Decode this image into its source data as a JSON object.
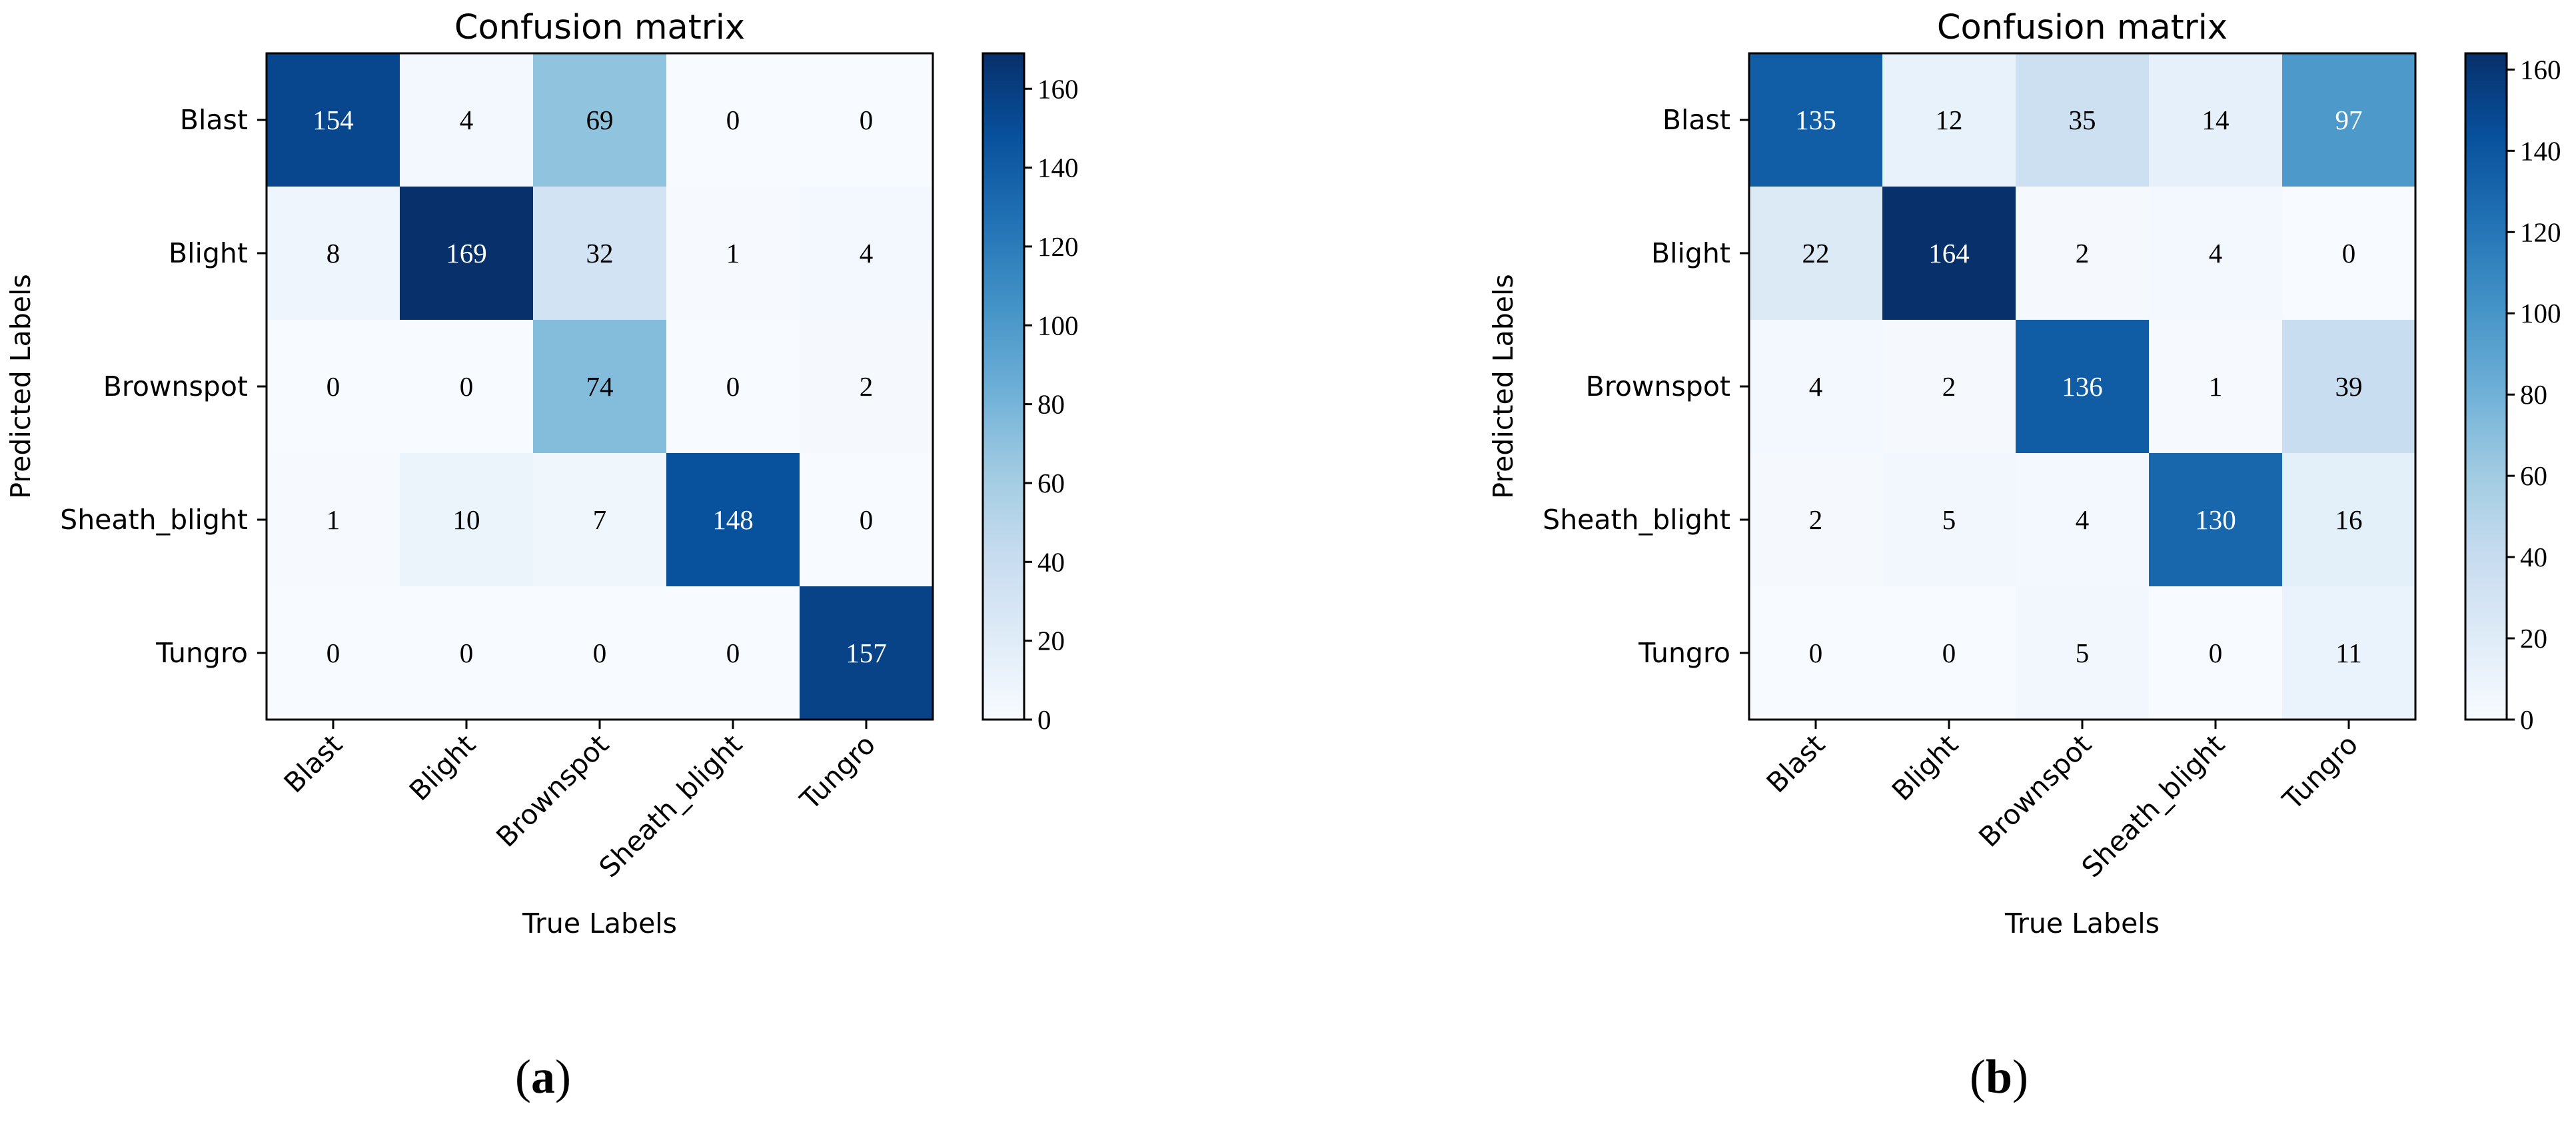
{
  "chart_data": [
    {
      "type": "heatmap",
      "title": "Confusion matrix",
      "xlabel": "True Labels",
      "ylabel": "Predicted Labels",
      "x_categories": [
        "Blast",
        "Blight",
        "Brownspot",
        "Sheath_blight",
        "Tungro"
      ],
      "y_categories": [
        "Blast",
        "Blight",
        "Brownspot",
        "Sheath_blight",
        "Tungro"
      ],
      "matrix": [
        [
          154,
          4,
          69,
          0,
          0
        ],
        [
          8,
          169,
          32,
          1,
          4
        ],
        [
          0,
          0,
          74,
          0,
          2
        ],
        [
          1,
          10,
          7,
          148,
          0
        ],
        [
          0,
          0,
          0,
          0,
          157
        ]
      ],
      "colorbar": {
        "min": 0,
        "max": 169,
        "ticks": [
          0,
          20,
          40,
          60,
          80,
          100,
          120,
          140,
          160
        ]
      },
      "caption_letter": "a",
      "colormap": "Blues"
    },
    {
      "type": "heatmap",
      "title": "Confusion matrix",
      "xlabel": "True Labels",
      "ylabel": "Predicted Labels",
      "x_categories": [
        "Blast",
        "Blight",
        "Brownspot",
        "Sheath_blight",
        "Tungro"
      ],
      "y_categories": [
        "Blast",
        "Blight",
        "Brownspot",
        "Sheath_blight",
        "Tungro"
      ],
      "matrix": [
        [
          135,
          12,
          35,
          14,
          97
        ],
        [
          22,
          164,
          2,
          4,
          0
        ],
        [
          4,
          2,
          136,
          1,
          39
        ],
        [
          2,
          5,
          4,
          130,
          16
        ],
        [
          0,
          0,
          5,
          0,
          11
        ]
      ],
      "colorbar": {
        "min": 0,
        "max": 164,
        "ticks": [
          0,
          20,
          40,
          60,
          80,
          100,
          120,
          140,
          160
        ]
      },
      "caption_letter": "b",
      "colormap": "Blues"
    }
  ]
}
